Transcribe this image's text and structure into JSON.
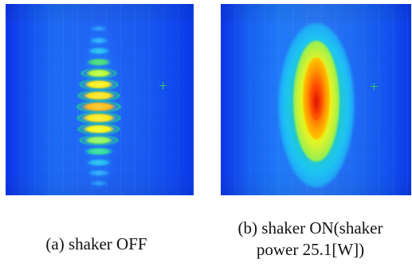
{
  "figure": {
    "panel_a": {
      "caption": "(a) shaker OFF",
      "image_description": "interference fringe pattern",
      "crosshair_icon": "plus-marker"
    },
    "panel_b": {
      "caption_line1": "(b) shaker ON(shaker",
      "caption_line2": "power 25.1[W])",
      "image_description": "blurred elongated intensity blob",
      "crosshair_icon": "plus-marker"
    },
    "colors": {
      "background_blue": "#1e63f3",
      "marker_green": "#32c95a",
      "fringe_yellow": "#f6ff00",
      "fringe_green": "#24d96a",
      "hot_red": "#e82600",
      "caption_text": "#111111"
    }
  }
}
